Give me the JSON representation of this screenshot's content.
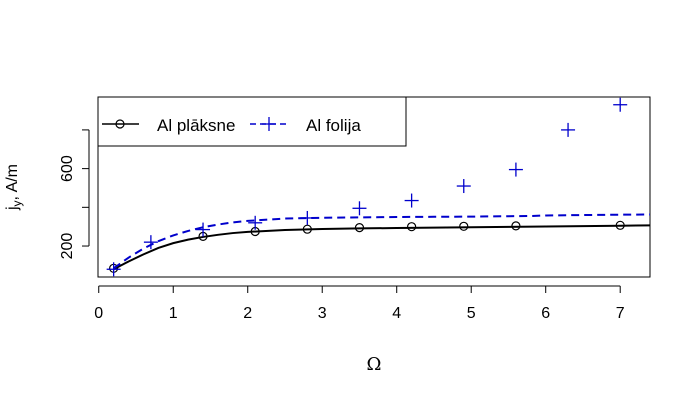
{
  "chart_data": {
    "type": "line",
    "xlabel": "Ω",
    "ylabel": "j_y, A/m",
    "ylabel_parts": {
      "main": "j",
      "sub": "y",
      "rest": ", A/m"
    },
    "xlim": [
      -0.01,
      7.4
    ],
    "ylim": [
      40,
      970
    ],
    "x_ticks": [
      0,
      1,
      2,
      3,
      4,
      5,
      6,
      7
    ],
    "y_ticks": [
      200,
      400,
      600,
      800
    ],
    "y_tick_labels": [
      "200",
      "",
      "600",
      ""
    ],
    "grid": false,
    "legend_position": "top-left",
    "series": [
      {
        "name": "Al plāksne",
        "color": "#000000",
        "line_style": "solid",
        "marker": "circle",
        "points": {
          "x": [
            0.2,
            1.4,
            2.1,
            2.8,
            3.5,
            4.2,
            4.9,
            5.6,
            7.0
          ],
          "y": [
            85,
            250,
            275,
            287,
            295,
            300,
            302,
            304,
            307
          ]
        },
        "curve": {
          "x": [
            0.2,
            0.4,
            0.6,
            0.8,
            1.0,
            1.2,
            1.4,
            1.6,
            1.8,
            2.0,
            2.5,
            3.0,
            3.5,
            4.0,
            4.5,
            5.0,
            5.5,
            6.0,
            6.5,
            7.0,
            7.4
          ],
          "y": [
            80,
            120,
            157,
            190,
            215,
            233,
            247,
            258,
            267,
            273,
            283,
            288,
            291,
            293,
            295,
            297,
            299,
            301,
            303,
            305,
            307
          ]
        }
      },
      {
        "name": "Al folija",
        "color": "#0000cc",
        "line_style": "dashed",
        "marker": "plus",
        "points": {
          "x": [
            0.2,
            0.7,
            1.4,
            2.1,
            2.8,
            3.5,
            4.2,
            4.9,
            5.6,
            6.3,
            7.0
          ],
          "y": [
            80,
            220,
            285,
            320,
            345,
            395,
            435,
            510,
            595,
            800,
            930
          ]
        },
        "curve": {
          "x": [
            0.2,
            0.4,
            0.6,
            0.8,
            1.0,
            1.2,
            1.4,
            1.6,
            1.8,
            2.0,
            2.5,
            3.0,
            3.5,
            4.0,
            4.5,
            5.0,
            5.5,
            5.8,
            6.0,
            6.5,
            7.0,
            7.4
          ],
          "y": [
            85,
            140,
            187,
            225,
            255,
            278,
            297,
            311,
            322,
            330,
            342,
            346,
            348,
            350,
            351,
            352,
            354,
            355,
            358,
            360,
            362,
            363
          ]
        }
      }
    ]
  }
}
